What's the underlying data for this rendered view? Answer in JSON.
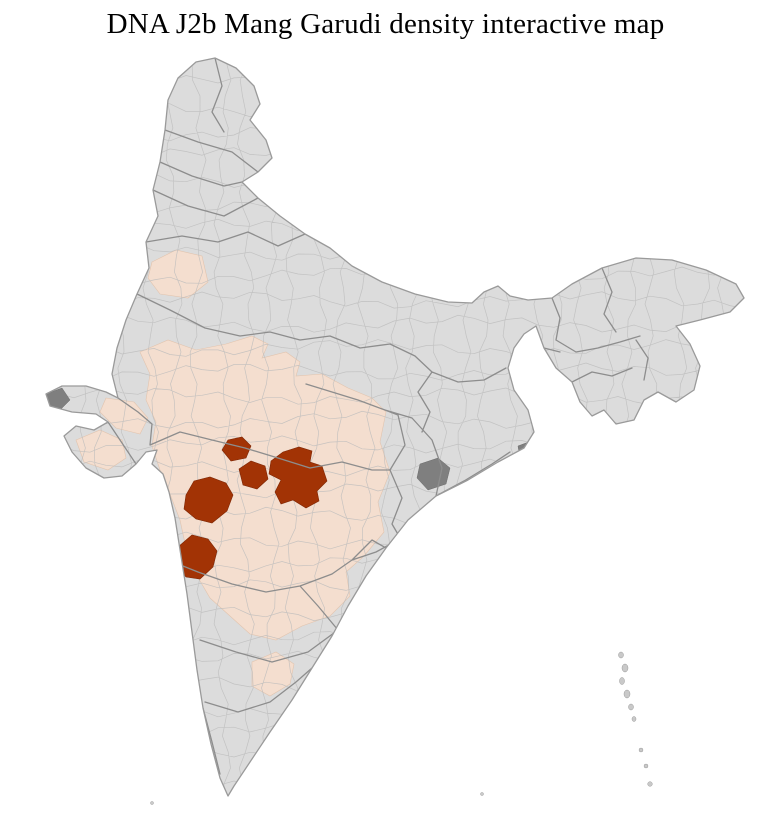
{
  "page": {
    "title": "DNA J2b Mang Garudi density interactive map"
  },
  "map": {
    "country": "India",
    "subdivision_level": "districts",
    "colors": {
      "page_bg": "#ffffff",
      "district_default": "#dcdcdc",
      "district_border": "#bcbcbc",
      "state_border": "#8d8d8d",
      "country_outline": "#9a9a9a",
      "density_low": "#f4decf",
      "density_high": "#a23305",
      "dark_patch": "#7f7f7f",
      "island": "#c9c9c9"
    }
  }
}
